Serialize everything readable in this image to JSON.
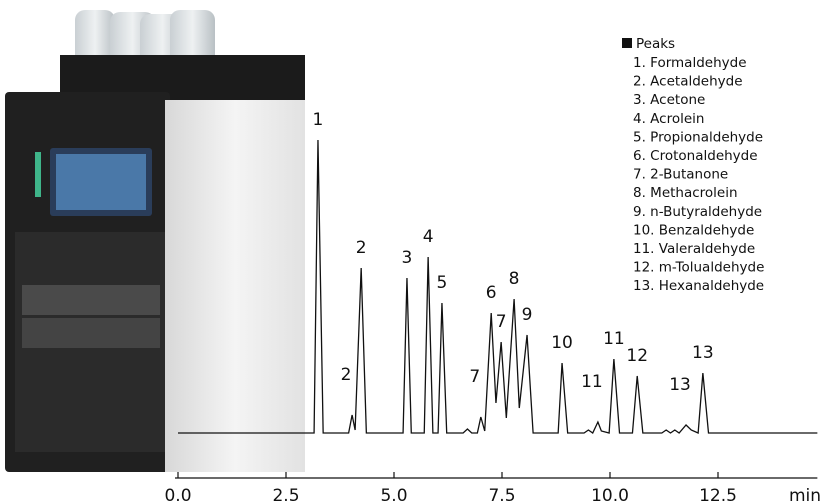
{
  "chart_data": {
    "type": "line",
    "x": [
      0,
      3.15,
      3.24,
      3.36,
      3.95,
      4.03,
      4.1,
      4.24,
      4.36,
      5.21,
      5.3,
      5.4,
      5.7,
      5.79,
      5.9,
      6.02,
      6.11,
      6.22,
      6.6,
      6.7,
      6.8,
      6.93,
      7.01,
      7.1,
      7.25,
      7.36,
      7.48,
      7.6,
      7.78,
      7.9,
      8.08,
      8.22,
      8.8,
      8.89,
      9.02,
      9.4,
      9.5,
      9.6,
      9.72,
      9.8,
      9.98,
      10.09,
      10.22,
      10.52,
      10.63,
      10.76,
      11.2,
      11.3,
      11.4,
      11.5,
      11.6,
      11.76,
      11.88,
      12.04,
      12.15,
      12.28,
      14.8
    ],
    "series": [
      {
        "color": "#111111",
        "values": [
          0,
          0,
          293,
          0,
          0,
          18,
          3,
          165,
          0,
          0,
          155,
          0,
          0,
          176,
          0,
          0,
          130,
          0,
          0,
          4,
          0,
          0,
          16,
          2,
          120,
          30,
          91,
          15,
          134,
          25,
          98,
          0,
          0,
          70,
          0,
          0,
          3,
          0,
          11,
          2,
          0,
          74,
          0,
          0,
          57,
          0,
          0,
          3,
          0,
          3,
          0,
          8,
          3,
          0,
          60,
          0,
          0
        ]
      }
    ],
    "xlim": [
      0,
      14.8
    ],
    "ylim": [
      0,
      300
    ],
    "xticks": [
      {
        "value": 0,
        "label": "0.0"
      },
      {
        "value": 2.5,
        "label": "2.5"
      },
      {
        "value": 5,
        "label": "5.0"
      },
      {
        "value": 7.5,
        "label": "7.5"
      },
      {
        "value": 10,
        "label": "10.0"
      },
      {
        "value": 12.5,
        "label": "12.5"
      }
    ],
    "x_label": "min",
    "annotations": [
      {
        "text": "1",
        "x": 3.24,
        "y": 293
      },
      {
        "text": "2",
        "x": 4.03,
        "y": 18
      },
      {
        "text": "2",
        "x": 4.24,
        "y": 165
      },
      {
        "text": "3",
        "x": 5.3,
        "y": 155
      },
      {
        "text": "4",
        "x": 5.79,
        "y": 176
      },
      {
        "text": "5",
        "x": 6.11,
        "y": 130
      },
      {
        "text": "7",
        "x": 7.01,
        "y": 16
      },
      {
        "text": "6",
        "x": 7.25,
        "y": 120
      },
      {
        "text": "7",
        "x": 7.48,
        "y": 91
      },
      {
        "text": "8",
        "x": 7.78,
        "y": 134
      },
      {
        "text": "9",
        "x": 8.08,
        "y": 98
      },
      {
        "text": "10",
        "x": 8.89,
        "y": 70
      },
      {
        "text": "11",
        "x": 9.72,
        "y": 11
      },
      {
        "text": "11",
        "x": 10.09,
        "y": 74
      },
      {
        "text": "12",
        "x": 10.63,
        "y": 57
      },
      {
        "text": "13",
        "x": 11.76,
        "y": 8
      },
      {
        "text": "13",
        "x": 12.15,
        "y": 60
      }
    ],
    "legend": {
      "title": "Peaks",
      "items": [
        "1. Formaldehyde",
        "2. Acetaldehyde",
        "3. Acetone",
        "4. Acrolein",
        "5. Propionaldehyde",
        "6. Crotonaldehyde",
        "7. 2-Butanone",
        "8. Methacrolein",
        "9. n-Butyraldehyde",
        "10. Benzaldehyde",
        "11. Valeraldehyde",
        "12. m-Tolualdehyde",
        "13. Hexanaldehyde"
      ]
    }
  }
}
